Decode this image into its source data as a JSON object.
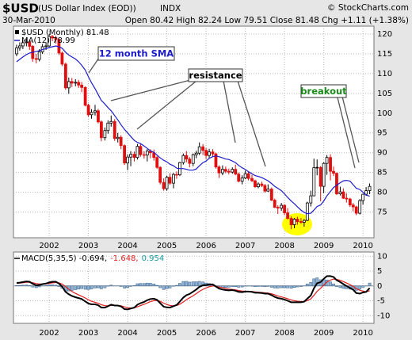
{
  "chart_data": [
    {
      "type": "candlestick",
      "title": "$USD",
      "subtitle": "(US Dollar Index (EOD))",
      "exchange": "INDX",
      "date": "30-Mar-2010",
      "quote": "Open 80.42 High 82.24 Low 79.51 Close 81.48 Chg +1.11 (+1.38%)",
      "credit": "© StockCharts.com",
      "name": "$USD (Monthly) 81.48",
      "up_color": "#000000",
      "down_color": "#e01010",
      "annotations": [
        "12 month SMA",
        "resistance",
        "breakout"
      ],
      "x": [
        2001.17,
        2001.25,
        2001.33,
        2001.42,
        2001.5,
        2001.58,
        2001.67,
        2001.75,
        2001.83,
        2001.92,
        2002,
        2002.08,
        2002.17,
        2002.25,
        2002.33,
        2002.42,
        2002.5,
        2002.58,
        2002.67,
        2002.75,
        2002.83,
        2002.92,
        2003,
        2003.08,
        2003.17,
        2003.25,
        2003.33,
        2003.42,
        2003.5,
        2003.58,
        2003.67,
        2003.75,
        2003.83,
        2003.92,
        2004,
        2004.08,
        2004.17,
        2004.25,
        2004.33,
        2004.42,
        2004.5,
        2004.58,
        2004.67,
        2004.75,
        2004.83,
        2004.92,
        2005,
        2005.08,
        2005.17,
        2005.25,
        2005.33,
        2005.42,
        2005.5,
        2005.58,
        2005.67,
        2005.75,
        2005.83,
        2005.92,
        2006,
        2006.08,
        2006.17,
        2006.25,
        2006.33,
        2006.42,
        2006.5,
        2006.58,
        2006.67,
        2006.75,
        2006.83,
        2006.92,
        2007,
        2007.08,
        2007.17,
        2007.25,
        2007.33,
        2007.42,
        2007.5,
        2007.58,
        2007.67,
        2007.75,
        2007.83,
        2007.92,
        2008,
        2008.08,
        2008.17,
        2008.25,
        2008.33,
        2008.42,
        2008.5,
        2008.58,
        2008.67,
        2008.75,
        2008.83,
        2008.92,
        2009,
        2009.08,
        2009.17,
        2009.25,
        2009.33,
        2009.42,
        2009.5,
        2009.58,
        2009.67,
        2009.75,
        2009.83,
        2009.92,
        2010,
        2010.08,
        2010.17
      ],
      "open": [
        115.0,
        116.5,
        117.0,
        117.8,
        118.0,
        116.9,
        113.8,
        113.6,
        115.5,
        116.8,
        117.0,
        119.4,
        119.0,
        118.6,
        115.2,
        112.4,
        106.4,
        108.0,
        107.6,
        107.8,
        107.1,
        106.5,
        102.0,
        99.6,
        100.2,
        100.6,
        97.8,
        93.8,
        95.6,
        97.5,
        97.9,
        93.6,
        93.9,
        91.8,
        87.4,
        88.9,
        89.6,
        88.8,
        91.6,
        89.5,
        89.4,
        90.4,
        90.0,
        88.8,
        86.3,
        82.5,
        80.9,
        83.8,
        82.3,
        84.5,
        84.4,
        87.5,
        89.3,
        88.4,
        87.3,
        89.5,
        89.9,
        91.5,
        90.6,
        89.3,
        90.2,
        89.7,
        86.4,
        84.9,
        85.8,
        85.3,
        85.1,
        85.8,
        84.6,
        82.8,
        83.6,
        84.7,
        83.5,
        82.9,
        81.4,
        82.1,
        81.7,
        80.3,
        80.8,
        78.0,
        76.2,
        76.0,
        76.7,
        74.8,
        73.4,
        71.8,
        73.2,
        72.6,
        72.4,
        72.9,
        77.3,
        79.1,
        86.2,
        86.3,
        81.5,
        87.3,
        88.8,
        85.3,
        84.8,
        79.6,
        80.1,
        78.5,
        78.3,
        76.8,
        76.3,
        74.7,
        77.9,
        79.5,
        80.42
      ],
      "high": [
        117.3,
        117.9,
        118.4,
        118.9,
        118.6,
        117.2,
        115.0,
        116.2,
        117.5,
        117.9,
        120.0,
        119.8,
        119.6,
        118.9,
        115.6,
        112.8,
        109.0,
        108.9,
        108.6,
        108.4,
        107.9,
        106.8,
        102.4,
        101.0,
        102.1,
        101.1,
        98.2,
        96.4,
        98.2,
        99.4,
        98.5,
        95.0,
        94.4,
        92.1,
        89.6,
        90.4,
        90.3,
        92.2,
        92.3,
        90.4,
        90.9,
        90.9,
        90.8,
        89.2,
        86.6,
        83.5,
        84.2,
        84.8,
        84.9,
        85.3,
        87.7,
        89.8,
        90.4,
        88.9,
        89.8,
        90.5,
        92.6,
        92.2,
        91.2,
        91.0,
        90.9,
        90.0,
        86.8,
        86.8,
        86.5,
        86.0,
        86.3,
        87.0,
        85.0,
        84.3,
        85.5,
        85.2,
        84.4,
        83.2,
        82.5,
        82.7,
        82.1,
        82.0,
        81.2,
        78.4,
        76.7,
        77.3,
        77.0,
        76.0,
        73.9,
        73.5,
        73.8,
        73.5,
        73.2,
        77.6,
        80.4,
        88.5,
        88.3,
        86.6,
        87.6,
        89.4,
        89.6,
        86.5,
        85.0,
        81.4,
        81.0,
        79.7,
        78.6,
        77.3,
        76.6,
        78.3,
        79.6,
        81.3,
        82.24
      ],
      "low": [
        114.4,
        115.8,
        116.2,
        116.9,
        116.0,
        113.0,
        112.6,
        113.1,
        115.0,
        116.0,
        116.6,
        118.2,
        117.6,
        114.7,
        111.9,
        105.9,
        104.9,
        106.6,
        106.8,
        106.4,
        105.3,
        101.7,
        99.1,
        98.6,
        99.4,
        97.4,
        92.9,
        93.1,
        94.8,
        96.6,
        93.0,
        92.6,
        90.9,
        86.9,
        85.6,
        86.6,
        87.8,
        88.3,
        89.0,
        88.5,
        87.8,
        88.6,
        88.0,
        85.9,
        82.0,
        80.4,
        80.4,
        81.9,
        81.0,
        83.4,
        84.1,
        87.0,
        87.6,
        86.3,
        86.6,
        88.6,
        89.4,
        89.4,
        88.4,
        88.6,
        88.9,
        86.0,
        83.6,
        84.3,
        84.8,
        84.5,
        84.7,
        84.3,
        82.5,
        82.0,
        83.3,
        83.0,
        82.6,
        81.1,
        81.0,
        81.3,
        79.9,
        80.1,
        77.8,
        76.0,
        74.5,
        75.3,
        74.2,
        73.1,
        70.7,
        70.9,
        71.8,
        72.0,
        71.3,
        72.7,
        76.4,
        79.0,
        84.3,
        77.7,
        79.8,
        84.4,
        83.0,
        84.1,
        79.3,
        79.2,
        78.3,
        77.4,
        76.3,
        75.2,
        74.2,
        74.4,
        76.9,
        79.1,
        79.51
      ],
      "close": [
        116.5,
        117.0,
        117.8,
        118.0,
        116.9,
        113.8,
        113.6,
        115.5,
        116.8,
        117.0,
        119.4,
        119.0,
        118.6,
        115.2,
        112.4,
        106.4,
        108.0,
        107.6,
        107.8,
        107.1,
        106.5,
        102.0,
        99.6,
        100.2,
        100.6,
        97.8,
        93.8,
        95.6,
        97.5,
        97.9,
        93.6,
        93.9,
        91.8,
        87.4,
        88.9,
        89.6,
        88.8,
        91.6,
        89.5,
        89.4,
        90.4,
        90.0,
        88.8,
        86.3,
        82.5,
        80.9,
        83.8,
        82.3,
        84.5,
        84.4,
        87.5,
        89.3,
        88.4,
        87.3,
        89.5,
        89.9,
        91.5,
        90.6,
        89.3,
        90.2,
        89.7,
        86.4,
        84.9,
        85.8,
        85.3,
        85.1,
        85.8,
        84.6,
        82.8,
        83.6,
        84.7,
        83.5,
        82.9,
        81.4,
        82.1,
        81.7,
        80.3,
        80.8,
        78.0,
        76.2,
        76.0,
        76.7,
        74.8,
        73.4,
        71.8,
        73.2,
        72.6,
        72.4,
        72.9,
        77.3,
        79.1,
        86.2,
        86.3,
        81.5,
        87.3,
        88.8,
        85.3,
        84.8,
        79.6,
        80.1,
        78.5,
        78.3,
        76.8,
        76.3,
        74.7,
        77.9,
        79.5,
        80.4,
        81.48
      ],
      "ma": {
        "name": "MA(12) 78.99",
        "color": "#1c1ccc",
        "values": [
          113.0,
          113.6,
          114.2,
          114.8,
          115.2,
          115.4,
          115.6,
          115.8,
          116.1,
          116.3,
          116.6,
          116.8,
          117.0,
          116.8,
          116.4,
          115.4,
          114.7,
          114.2,
          113.7,
          113.0,
          112.1,
          110.9,
          109.2,
          107.7,
          106.2,
          104.7,
          103.2,
          102.3,
          101.4,
          100.6,
          99.4,
          98.3,
          97.1,
          95.9,
          95.0,
          94.1,
          93.1,
          92.6,
          92.3,
          91.7,
          91.1,
          90.5,
          90.1,
          89.4,
          88.7,
          88.1,
          87.7,
          87.1,
          86.7,
          86.1,
          86.0,
          86.0,
          85.8,
          85.6,
          85.6,
          85.9,
          86.7,
          87.5,
          87.9,
          88.6,
          89.0,
          89.2,
          89.0,
          88.7,
          88.4,
          88.3,
          87.9,
          87.5,
          86.8,
          86.2,
          85.8,
          85.2,
          84.7,
          84.2,
          84.0,
          83.7,
          83.3,
          82.9,
          82.2,
          81.5,
          81.0,
          80.4,
          79.6,
          78.7,
          77.8,
          77.1,
          76.3,
          75.5,
          74.9,
          74.6,
          74.7,
          75.5,
          76.4,
          76.8,
          77.8,
          79.1,
          80.2,
          81.2,
          81.8,
          82.4,
          82.9,
          83.0,
          82.8,
          81.9,
          81.0,
          80.7,
          80.0,
          79.3,
          78.99
        ]
      },
      "xlim": [
        2001.09,
        2010.28
      ],
      "xticks": [
        2002,
        2003,
        2004,
        2005,
        2006,
        2007,
        2008,
        2009,
        2010
      ],
      "ylim": [
        68.5,
        122
      ],
      "yticks": [
        75,
        80,
        85,
        90,
        95,
        100,
        105,
        110,
        115,
        120
      ],
      "grid": true
    },
    {
      "type": "macd",
      "xlim": [
        2001.09,
        2010.28
      ],
      "xticks": [
        2002,
        2003,
        2004,
        2005,
        2006,
        2007,
        2008,
        2009,
        2010
      ],
      "ylim": [
        -12.6,
        11.4
      ],
      "yticks": [
        10,
        5,
        0,
        -5,
        -10
      ],
      "grid": true,
      "series": [
        {
          "name": "MACD(5,35,5) -0.694,",
          "color": "#000000",
          "values": [
            1.0,
            1.1,
            1.3,
            1.5,
            1.4,
            0.7,
            0.2,
            0.3,
            0.6,
            0.8,
            1.2,
            1.4,
            1.4,
            0.8,
            -0.2,
            -2.0,
            -2.8,
            -3.4,
            -3.8,
            -4.1,
            -4.4,
            -5.2,
            -5.9,
            -6.2,
            -6.2,
            -6.5,
            -7.3,
            -7.3,
            -6.8,
            -6.3,
            -6.6,
            -6.6,
            -6.9,
            -7.8,
            -7.9,
            -7.6,
            -7.3,
            -6.3,
            -5.8,
            -5.4,
            -4.8,
            -4.4,
            -4.3,
            -4.7,
            -5.8,
            -7.0,
            -7.2,
            -7.3,
            -6.8,
            -6.4,
            -5.3,
            -3.9,
            -3.1,
            -2.7,
            -1.9,
            -1.2,
            -0.3,
            0.2,
            0.3,
            0.5,
            0.5,
            -0.2,
            -0.9,
            -1.2,
            -1.4,
            -1.5,
            -1.4,
            -1.6,
            -2.0,
            -2.1,
            -1.9,
            -1.9,
            -2.0,
            -2.3,
            -2.3,
            -2.4,
            -2.6,
            -2.6,
            -3.1,
            -3.7,
            -4.1,
            -4.3,
            -4.6,
            -5.0,
            -5.5,
            -5.5,
            -5.5,
            -5.5,
            -5.3,
            -4.3,
            -3.2,
            -0.8,
            0.9,
            1.3,
            2.4,
            3.3,
            3.3,
            3.0,
            1.9,
            1.3,
            0.6,
            0.0,
            -0.7,
            -1.3,
            -2.4,
            -2.6,
            -2.2,
            -2.0,
            -0.694
          ]
        },
        {
          "name": "-1.648,",
          "color": "#e02020",
          "values": [
            0.87,
            0.95,
            1.06,
            1.21,
            1.27,
            1.08,
            0.79,
            0.63,
            0.62,
            0.68,
            0.85,
            1.03,
            1.15,
            1.03,
            0.62,
            -0.25,
            -1.1,
            -1.87,
            -2.51,
            -3.04,
            -3.49,
            -4.06,
            -4.67,
            -5.18,
            -5.52,
            -5.85,
            -6.33,
            -6.65,
            -6.7,
            -6.57,
            -6.58,
            -6.59,
            -6.69,
            -7.06,
            -7.34,
            -7.43,
            -7.39,
            -7.03,
            -6.62,
            -6.21,
            -5.74,
            -5.29,
            -4.96,
            -4.87,
            -5.18,
            -5.79,
            -6.26,
            -6.61,
            -6.67,
            -6.58,
            -6.15,
            -5.4,
            -4.63,
            -3.99,
            -3.29,
            -2.59,
            -1.83,
            -1.15,
            -0.67,
            -0.28,
            -0.02,
            -0.08,
            -0.35,
            -0.63,
            -0.89,
            -1.09,
            -1.19,
            -1.33,
            -1.55,
            -1.73,
            -1.79,
            -1.83,
            -1.89,
            -2.03,
            -2.12,
            -2.21,
            -2.34,
            -2.43,
            -2.65,
            -3.0,
            -3.37,
            -3.68,
            -3.99,
            -4.33,
            -4.72,
            -4.98,
            -5.15,
            -5.27,
            -5.28,
            -4.95,
            -4.37,
            -3.18,
            -1.82,
            -0.78,
            0.28,
            1.29,
            1.96,
            2.31,
            2.17,
            1.88,
            1.45,
            0.97,
            0.41,
            -0.16,
            -0.91,
            -1.47,
            -1.75,
            -1.95,
            -1.648
          ]
        },
        {
          "name": "0.954",
          "color": "#1a9a9a",
          "fill": "#8fb3d4",
          "stroke": "#4a6f95",
          "values": [
            0.13,
            0.15,
            0.24,
            0.29,
            0.13,
            -0.38,
            -0.59,
            -0.33,
            -0.02,
            0.12,
            0.35,
            0.37,
            0.25,
            -0.23,
            -0.82,
            -1.75,
            -1.7,
            -1.53,
            -1.29,
            -1.06,
            -0.91,
            -1.14,
            -1.23,
            -1.02,
            -0.68,
            -0.65,
            -0.97,
            -0.65,
            -0.1,
            0.27,
            -0.02,
            -0.01,
            -0.21,
            -0.74,
            -0.56,
            -0.17,
            0.09,
            0.73,
            0.82,
            0.81,
            0.94,
            0.89,
            0.66,
            0.17,
            -0.62,
            -1.21,
            -0.94,
            -0.69,
            -0.13,
            0.18,
            0.85,
            1.5,
            1.53,
            1.29,
            1.39,
            1.39,
            1.53,
            1.35,
            0.97,
            0.78,
            0.52,
            -0.12,
            -0.55,
            -0.57,
            -0.51,
            -0.41,
            -0.21,
            -0.27,
            -0.45,
            -0.37,
            -0.11,
            -0.07,
            -0.11,
            -0.27,
            -0.18,
            -0.19,
            -0.26,
            -0.17,
            -0.45,
            -0.7,
            -0.73,
            -0.62,
            -0.61,
            -0.67,
            -0.78,
            -0.52,
            -0.35,
            -0.23,
            -0.02,
            0.65,
            1.17,
            2.38,
            2.72,
            2.08,
            2.12,
            2.01,
            1.34,
            0.69,
            -0.27,
            -0.58,
            -0.85,
            -0.97,
            -1.11,
            -1.14,
            -1.49,
            -1.13,
            -0.45,
            -0.05,
            0.954
          ]
        }
      ]
    }
  ]
}
